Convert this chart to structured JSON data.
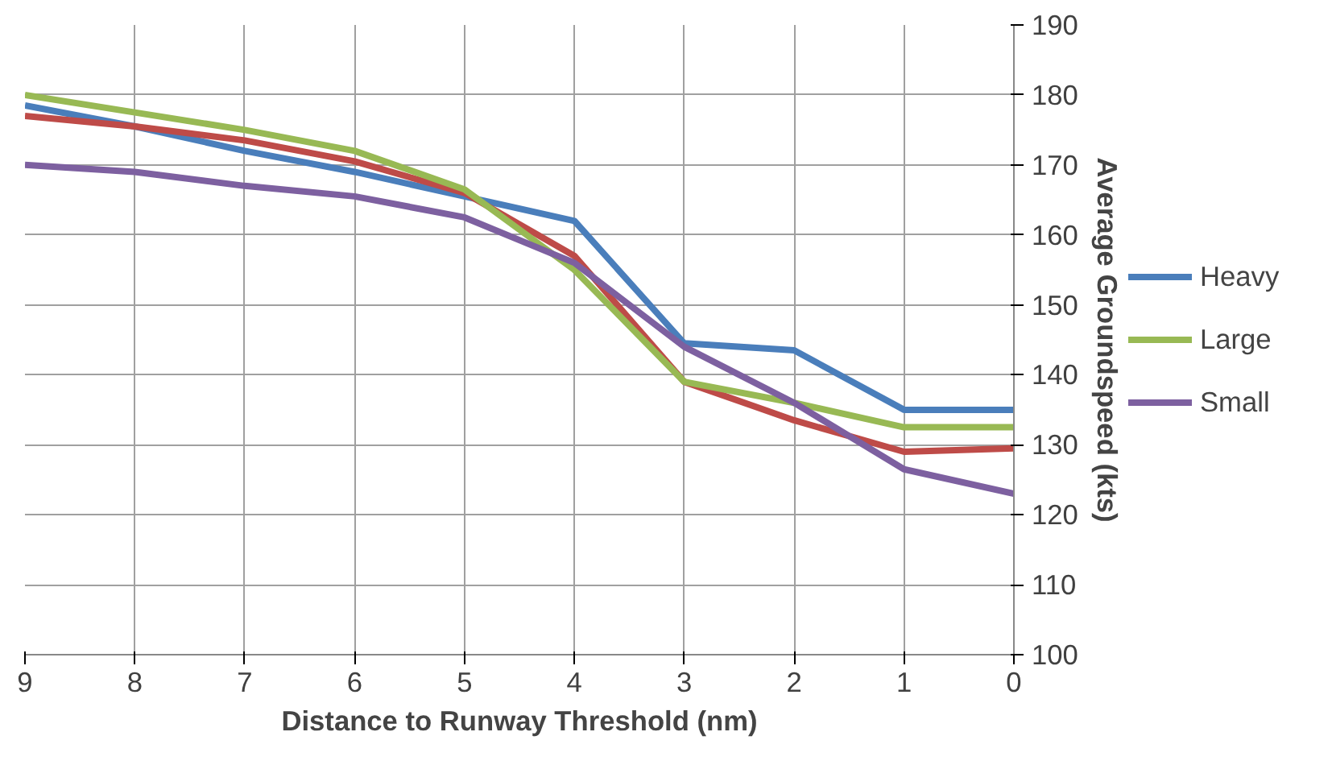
{
  "chart_data": {
    "type": "line",
    "xlabel": "Distance to Runway Threshold (nm)",
    "ylabel": "Average Groundspeed (kts)",
    "x": [
      9,
      8,
      7,
      6,
      5,
      4,
      3,
      2,
      1,
      0
    ],
    "series": [
      {
        "name": "Heavy",
        "color": "#4a7ebb",
        "values": [
          178.5,
          175.5,
          172,
          169,
          165.5,
          162,
          144.5,
          143.5,
          135,
          135
        ]
      },
      {
        "color": "#be4b48",
        "values": [
          177,
          175.5,
          173.5,
          170.5,
          166,
          157,
          139,
          133.5,
          129,
          129.5
        ]
      },
      {
        "name": "Large",
        "color": "#98b954",
        "values": [
          180,
          177.5,
          175,
          172,
          166.5,
          155,
          139,
          136,
          132.5,
          132.5
        ]
      },
      {
        "name": "Small",
        "color": "#7d60a0",
        "values": [
          170,
          169,
          167,
          165.5,
          162.5,
          156,
          144,
          136,
          126.5,
          123
        ]
      }
    ],
    "xlim": [
      9,
      0
    ],
    "xticks": [
      9,
      8,
      7,
      6,
      5,
      4,
      3,
      2,
      1,
      0
    ],
    "ylim": [
      100,
      190
    ],
    "yticks": [
      100,
      110,
      120,
      130,
      140,
      150,
      160,
      170,
      180,
      190
    ],
    "grid": true,
    "legend": "right",
    "marker": "none",
    "line_style": "solid"
  }
}
